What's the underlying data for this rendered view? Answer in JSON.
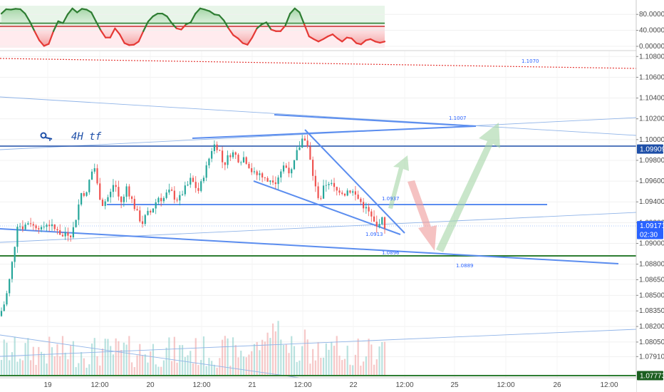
{
  "chart_data": [
    {
      "type": "line",
      "name": "oscillator",
      "ylim": [
        0,
        100
      ],
      "y_ticks": [
        "80.00000",
        "40.00000",
        "0.00000"
      ],
      "y_tick_values": [
        80,
        40,
        0
      ],
      "levels": [
        58,
        50
      ],
      "series": [
        {
          "values": [
            82,
            93,
            92,
            94,
            93,
            82,
            62,
            38,
            15,
            1,
            6,
            38,
            63,
            58,
            80,
            95,
            85,
            94,
            92,
            85,
            62,
            40,
            22,
            22,
            45,
            30,
            8,
            3,
            4,
            12,
            38,
            62,
            75,
            82,
            82,
            75,
            58,
            45,
            42,
            55,
            60,
            82,
            95,
            92,
            88,
            80,
            78,
            65,
            45,
            28,
            20,
            8,
            4,
            22,
            45,
            55,
            60,
            42,
            38,
            38,
            52,
            82,
            95,
            85,
            55,
            25,
            18,
            12,
            18,
            25,
            30,
            20,
            12,
            22,
            20,
            8,
            5,
            15,
            18,
            12,
            9,
            12
          ]
        }
      ]
    },
    {
      "type": "candlestick",
      "name": "EURUSD 4H",
      "ylim": [
        1.0772,
        1.1085
      ],
      "y_ticks": [
        "1.10800",
        "1.10600",
        "1.10400",
        "1.10200",
        "1.10000",
        "1.09800",
        "1.09600",
        "1.09400",
        "1.09200",
        "1.09000",
        "1.08800",
        "1.08650",
        "1.08500",
        "1.08350",
        "1.08200",
        "1.08050",
        "1.07910"
      ],
      "y_tick_values": [
        1.108,
        1.106,
        1.104,
        1.102,
        1.1,
        1.098,
        1.096,
        1.094,
        1.092,
        1.09,
        1.088,
        1.0865,
        1.085,
        1.0835,
        1.082,
        1.0805,
        1.0791
      ],
      "x_ticks": [
        "19",
        "12:00",
        "20",
        "12:00",
        "21",
        "12:00",
        "22",
        "12:00",
        "25",
        "12:00",
        "26",
        "12:00"
      ],
      "price_tags": [
        {
          "label": "1.09909",
          "value": 1.09909,
          "color": "#1e4fa8"
        },
        {
          "label": "1.09171",
          "value": 1.09171,
          "color": "#2962ff"
        },
        {
          "label": "02:30",
          "value": 1.0906,
          "color": "#2962ff"
        },
        {
          "label": "1.07773",
          "value": 1.07773,
          "color": "#1b5e20"
        }
      ],
      "level_labels": [
        "1.1070",
        "1.1007",
        "1.0937",
        "1.0913",
        "1.0896",
        "1.0889"
      ],
      "annotation": "4H tf",
      "close_path": [
        1.0835,
        1.0845,
        1.0865,
        1.089,
        1.092,
        1.0915,
        1.0918,
        1.0922,
        1.0916,
        1.0918,
        1.0912,
        1.092,
        1.0918,
        1.0913,
        1.0915,
        1.0905,
        1.0912,
        1.0908,
        1.0916,
        1.0935,
        1.0952,
        1.0945,
        1.0965,
        1.0975,
        1.095,
        1.0938,
        1.0942,
        1.0948,
        1.096,
        1.0945,
        1.0938,
        1.0955,
        1.0945,
        1.0935,
        1.0925,
        1.092,
        1.0928,
        1.093,
        1.0938,
        1.0945,
        1.0942,
        1.0948,
        1.095,
        1.0944,
        1.0942,
        1.095,
        1.0955,
        1.0962,
        1.0955,
        1.095,
        1.0965,
        1.0975,
        1.099,
        1.0996,
        1.099,
        1.0975,
        1.0982,
        1.0988,
        1.0985,
        1.098,
        1.0983,
        1.0978,
        1.097,
        1.0965,
        1.0968,
        1.0962,
        1.096,
        1.0963,
        1.096,
        1.0968,
        1.0975,
        1.0972,
        1.0968,
        1.0985,
        1.0995,
        1.1005,
        1.099,
        1.097,
        1.095,
        1.0942,
        1.0955,
        1.096,
        1.0955,
        1.095,
        1.0952,
        1.0948,
        1.0952,
        1.095,
        1.0945,
        1.094,
        1.0935,
        1.093,
        1.0922,
        1.0915,
        1.0925,
        1.0917
      ]
    }
  ]
}
